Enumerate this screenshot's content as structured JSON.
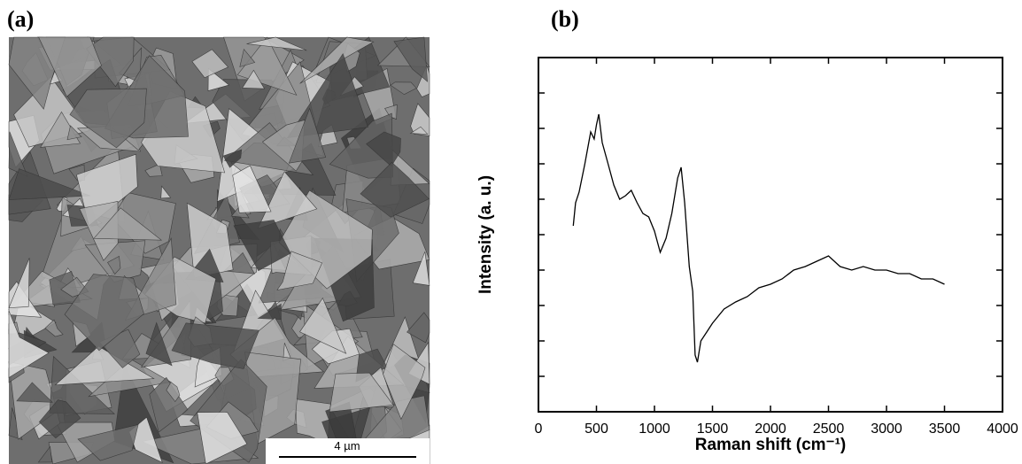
{
  "panel_a": {
    "label": "(a)",
    "scale_bar": "4 µm"
  },
  "panel_b": {
    "label": "(b)"
  },
  "chart_data": {
    "type": "line",
    "x_label": "Raman shift (cm⁻¹)",
    "y_label": "Intensity (a. u.)",
    "xlim": [
      0,
      4000
    ],
    "xticks": [
      0,
      500,
      1000,
      1500,
      2000,
      2500,
      3000,
      3500,
      4000
    ],
    "ylim": [
      0,
      10
    ],
    "yticks": [
      1,
      2,
      3,
      4,
      5,
      6,
      7,
      8,
      9
    ],
    "series": [
      {
        "name": null,
        "color": "#000000",
        "x": [
          300,
          320,
          350,
          400,
          450,
          480,
          500,
          520,
          550,
          600,
          650,
          700,
          750,
          800,
          850,
          900,
          950,
          1000,
          1050,
          1100,
          1150,
          1200,
          1230,
          1260,
          1300,
          1330,
          1350,
          1370,
          1400,
          1450,
          1500,
          1600,
          1700,
          1800,
          1900,
          2000,
          2100,
          2200,
          2300,
          2400,
          2500,
          2600,
          2700,
          2800,
          2900,
          3000,
          3100,
          3200,
          3300,
          3400,
          3500
        ],
        "values": [
          5.25,
          5.9,
          6.2,
          7.0,
          7.9,
          7.7,
          8.1,
          8.4,
          7.6,
          7.0,
          6.4,
          6.0,
          6.1,
          6.25,
          5.9,
          5.6,
          5.5,
          5.1,
          4.5,
          4.9,
          5.6,
          6.6,
          6.9,
          5.9,
          4.1,
          3.4,
          1.6,
          1.4,
          2.0,
          2.25,
          2.5,
          2.9,
          3.1,
          3.25,
          3.5,
          3.6,
          3.75,
          4.0,
          4.1,
          4.25,
          4.4,
          4.1,
          4.0,
          4.1,
          4.0,
          4.0,
          3.9,
          3.9,
          3.75,
          3.75,
          3.6
        ]
      }
    ]
  }
}
